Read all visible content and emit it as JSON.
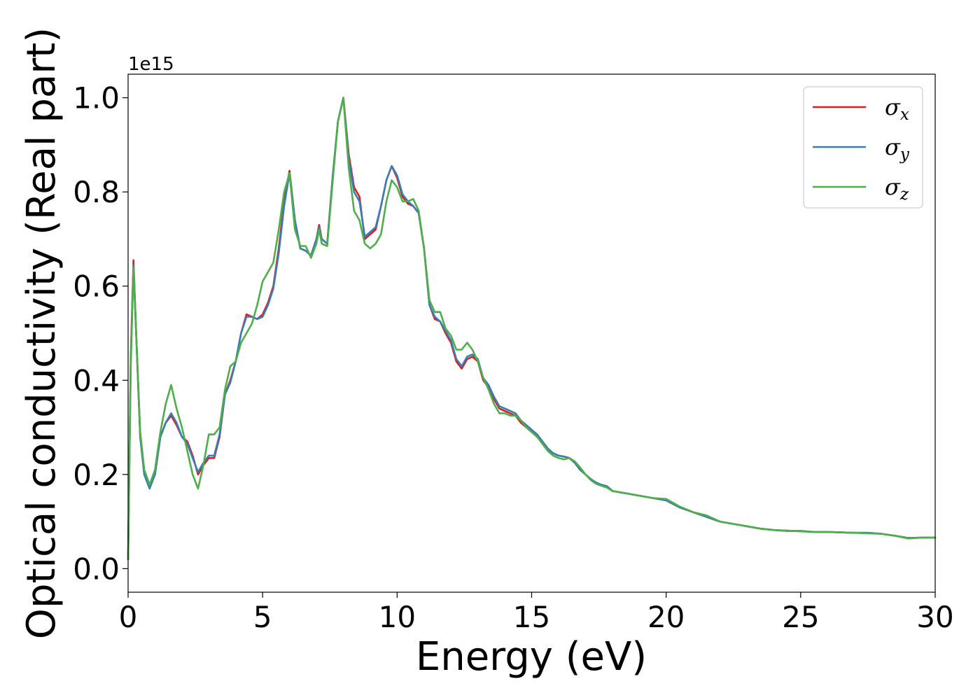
{
  "chart_data": {
    "type": "line",
    "xlabel": "Energy (eV)",
    "ylabel": "Optical conductivity (Real part)",
    "y_offset_label": "1e15",
    "xlim": [
      0,
      30
    ],
    "ylim": [
      -0.05,
      1.05
    ],
    "xticks": [
      0,
      5,
      10,
      15,
      20,
      25,
      30
    ],
    "xtick_labels": [
      "0",
      "5",
      "10",
      "15",
      "20",
      "25",
      "30"
    ],
    "yticks": [
      0.0,
      0.2,
      0.4,
      0.6,
      0.8,
      1.0
    ],
    "ytick_labels": [
      "0.0",
      "0.2",
      "0.4",
      "0.6",
      "0.8",
      "1.0"
    ],
    "grid": false,
    "legend_position": "top-right",
    "series": [
      {
        "name": "σx",
        "color": "#e41a1c",
        "x": [
          0,
          0.1,
          0.2,
          0.3,
          0.45,
          0.6,
          0.8,
          1.0,
          1.2,
          1.4,
          1.6,
          1.8,
          2.0,
          2.2,
          2.4,
          2.6,
          2.8,
          3.0,
          3.2,
          3.4,
          3.6,
          3.8,
          4.0,
          4.2,
          4.4,
          4.6,
          4.8,
          5.0,
          5.2,
          5.4,
          5.6,
          5.8,
          6.0,
          6.2,
          6.4,
          6.6,
          6.8,
          7.0,
          7.1,
          7.2,
          7.4,
          7.6,
          7.8,
          8.0,
          8.2,
          8.4,
          8.6,
          8.8,
          9.0,
          9.2,
          9.4,
          9.6,
          9.8,
          10.0,
          10.2,
          10.4,
          10.6,
          10.8,
          11.0,
          11.2,
          11.4,
          11.6,
          11.8,
          12.0,
          12.2,
          12.4,
          12.6,
          12.8,
          13.0,
          13.2,
          13.4,
          13.6,
          13.8,
          14.0,
          14.2,
          14.4,
          14.6,
          14.8,
          15.0,
          15.2,
          15.4,
          15.6,
          15.8,
          16.0,
          16.2,
          16.4,
          16.6,
          16.8,
          17.0,
          17.2,
          17.4,
          17.6,
          17.8,
          18.0,
          18.5,
          19.0,
          19.5,
          20.0,
          20.5,
          21.0,
          21.5,
          22.0,
          22.5,
          23.0,
          23.5,
          24.0,
          24.5,
          25.0,
          25.5,
          26.0,
          26.5,
          27.0,
          27.5,
          28.0,
          28.5,
          29.0,
          29.5,
          30.0
        ],
        "values": [
          0.02,
          0.45,
          0.655,
          0.5,
          0.28,
          0.2,
          0.172,
          0.2,
          0.28,
          0.31,
          0.325,
          0.305,
          0.28,
          0.27,
          0.24,
          0.2,
          0.22,
          0.235,
          0.235,
          0.28,
          0.37,
          0.4,
          0.44,
          0.5,
          0.54,
          0.535,
          0.53,
          0.54,
          0.565,
          0.6,
          0.68,
          0.78,
          0.845,
          0.74,
          0.68,
          0.675,
          0.665,
          0.7,
          0.73,
          0.7,
          0.69,
          0.83,
          0.95,
          1.0,
          0.88,
          0.81,
          0.79,
          0.7,
          0.71,
          0.72,
          0.77,
          0.825,
          0.855,
          0.83,
          0.79,
          0.775,
          0.77,
          0.755,
          0.68,
          0.56,
          0.53,
          0.525,
          0.5,
          0.48,
          0.44,
          0.425,
          0.445,
          0.45,
          0.44,
          0.4,
          0.385,
          0.36,
          0.34,
          0.335,
          0.33,
          0.325,
          0.31,
          0.3,
          0.29,
          0.285,
          0.27,
          0.255,
          0.245,
          0.24,
          0.238,
          0.235,
          0.225,
          0.21,
          0.2,
          0.19,
          0.182,
          0.178,
          0.175,
          0.165,
          0.16,
          0.155,
          0.15,
          0.145,
          0.13,
          0.12,
          0.11,
          0.1,
          0.095,
          0.09,
          0.085,
          0.082,
          0.08,
          0.08,
          0.078,
          0.078,
          0.077,
          0.076,
          0.076,
          0.074,
          0.07,
          0.065,
          0.066,
          0.066
        ]
      },
      {
        "name": "σy",
        "color": "#377eb8",
        "x": [
          0,
          0.1,
          0.2,
          0.3,
          0.45,
          0.6,
          0.8,
          1.0,
          1.2,
          1.4,
          1.6,
          1.8,
          2.0,
          2.2,
          2.4,
          2.6,
          2.8,
          3.0,
          3.2,
          3.4,
          3.6,
          3.8,
          4.0,
          4.2,
          4.4,
          4.6,
          4.8,
          5.0,
          5.2,
          5.4,
          5.6,
          5.8,
          6.0,
          6.2,
          6.4,
          6.6,
          6.8,
          7.0,
          7.1,
          7.2,
          7.4,
          7.6,
          7.8,
          8.0,
          8.2,
          8.4,
          8.6,
          8.8,
          9.0,
          9.2,
          9.4,
          9.6,
          9.8,
          10.0,
          10.2,
          10.4,
          10.6,
          10.8,
          11.0,
          11.2,
          11.4,
          11.6,
          11.8,
          12.0,
          12.2,
          12.4,
          12.6,
          12.8,
          13.0,
          13.2,
          13.4,
          13.6,
          13.8,
          14.0,
          14.2,
          14.4,
          14.6,
          14.8,
          15.0,
          15.2,
          15.4,
          15.6,
          15.8,
          16.0,
          16.2,
          16.4,
          16.6,
          16.8,
          17.0,
          17.2,
          17.4,
          17.6,
          17.8,
          18.0,
          18.5,
          19.0,
          19.5,
          20.0,
          20.5,
          21.0,
          21.5,
          22.0,
          22.5,
          23.0,
          23.5,
          24.0,
          24.5,
          25.0,
          25.5,
          26.0,
          26.5,
          27.0,
          27.5,
          28.0,
          28.5,
          29.0,
          29.5,
          30.0
        ],
        "values": [
          0.02,
          0.44,
          0.645,
          0.5,
          0.28,
          0.2,
          0.17,
          0.2,
          0.28,
          0.31,
          0.33,
          0.31,
          0.28,
          0.265,
          0.235,
          0.205,
          0.225,
          0.24,
          0.24,
          0.285,
          0.37,
          0.395,
          0.44,
          0.5,
          0.535,
          0.535,
          0.53,
          0.535,
          0.56,
          0.595,
          0.67,
          0.77,
          0.84,
          0.74,
          0.68,
          0.675,
          0.665,
          0.7,
          0.725,
          0.7,
          0.69,
          0.83,
          0.95,
          1.0,
          0.87,
          0.8,
          0.78,
          0.705,
          0.715,
          0.725,
          0.77,
          0.825,
          0.855,
          0.835,
          0.795,
          0.78,
          0.77,
          0.755,
          0.68,
          0.56,
          0.535,
          0.525,
          0.505,
          0.485,
          0.445,
          0.43,
          0.45,
          0.455,
          0.445,
          0.405,
          0.39,
          0.365,
          0.345,
          0.34,
          0.335,
          0.33,
          0.315,
          0.305,
          0.295,
          0.285,
          0.27,
          0.255,
          0.245,
          0.24,
          0.238,
          0.235,
          0.225,
          0.21,
          0.2,
          0.19,
          0.183,
          0.178,
          0.175,
          0.165,
          0.16,
          0.155,
          0.15,
          0.145,
          0.13,
          0.12,
          0.11,
          0.1,
          0.095,
          0.09,
          0.085,
          0.082,
          0.08,
          0.08,
          0.078,
          0.078,
          0.077,
          0.076,
          0.076,
          0.074,
          0.07,
          0.065,
          0.066,
          0.066
        ]
      },
      {
        "name": "σz",
        "color": "#4daf4a",
        "x": [
          0,
          0.1,
          0.2,
          0.3,
          0.45,
          0.6,
          0.8,
          1.0,
          1.2,
          1.4,
          1.6,
          1.8,
          2.0,
          2.2,
          2.4,
          2.6,
          2.8,
          3.0,
          3.2,
          3.4,
          3.6,
          3.8,
          4.0,
          4.2,
          4.4,
          4.6,
          4.8,
          5.0,
          5.2,
          5.4,
          5.6,
          5.8,
          6.0,
          6.2,
          6.4,
          6.6,
          6.8,
          7.0,
          7.1,
          7.2,
          7.4,
          7.6,
          7.8,
          8.0,
          8.2,
          8.4,
          8.6,
          8.8,
          9.0,
          9.2,
          9.4,
          9.6,
          9.8,
          10.0,
          10.2,
          10.4,
          10.6,
          10.8,
          11.0,
          11.2,
          11.4,
          11.6,
          11.8,
          12.0,
          12.2,
          12.4,
          12.6,
          12.8,
          13.0,
          13.2,
          13.4,
          13.6,
          13.8,
          14.0,
          14.2,
          14.4,
          14.6,
          14.8,
          15.0,
          15.2,
          15.4,
          15.6,
          15.8,
          16.0,
          16.2,
          16.4,
          16.6,
          16.8,
          17.0,
          17.2,
          17.4,
          17.6,
          17.8,
          18.0,
          18.5,
          19.0,
          19.5,
          20.0,
          20.5,
          21.0,
          21.5,
          22.0,
          22.5,
          23.0,
          23.5,
          24.0,
          24.5,
          25.0,
          25.5,
          26.0,
          26.5,
          27.0,
          27.5,
          28.0,
          28.5,
          29.0,
          29.5,
          30.0
        ],
        "values": [
          0.02,
          0.43,
          0.64,
          0.5,
          0.29,
          0.21,
          0.178,
          0.21,
          0.29,
          0.35,
          0.39,
          0.34,
          0.3,
          0.25,
          0.2,
          0.17,
          0.22,
          0.285,
          0.285,
          0.3,
          0.38,
          0.43,
          0.44,
          0.48,
          0.5,
          0.52,
          0.56,
          0.61,
          0.63,
          0.65,
          0.72,
          0.8,
          0.84,
          0.72,
          0.685,
          0.685,
          0.66,
          0.69,
          0.72,
          0.69,
          0.685,
          0.82,
          0.95,
          1.0,
          0.85,
          0.76,
          0.74,
          0.69,
          0.68,
          0.69,
          0.71,
          0.78,
          0.825,
          0.81,
          0.78,
          0.78,
          0.785,
          0.76,
          0.68,
          0.57,
          0.545,
          0.545,
          0.51,
          0.495,
          0.465,
          0.465,
          0.48,
          0.465,
          0.44,
          0.405,
          0.38,
          0.35,
          0.33,
          0.33,
          0.325,
          0.325,
          0.315,
          0.3,
          0.29,
          0.28,
          0.265,
          0.25,
          0.24,
          0.235,
          0.232,
          0.235,
          0.228,
          0.215,
          0.2,
          0.188,
          0.18,
          0.176,
          0.172,
          0.165,
          0.16,
          0.155,
          0.15,
          0.148,
          0.132,
          0.12,
          0.113,
          0.1,
          0.095,
          0.09,
          0.085,
          0.082,
          0.081,
          0.079,
          0.078,
          0.078,
          0.077,
          0.076,
          0.075,
          0.074,
          0.07,
          0.064,
          0.066,
          0.066
        ]
      }
    ]
  }
}
